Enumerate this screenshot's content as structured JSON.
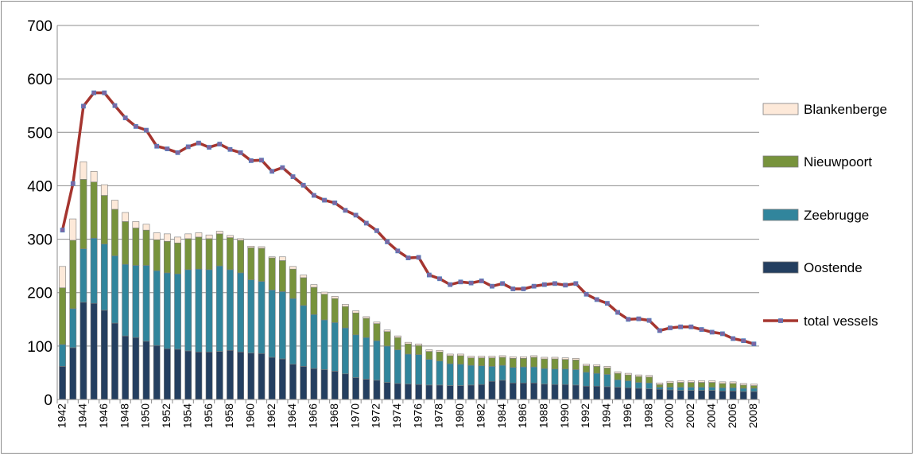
{
  "chart_data": {
    "type": "bar",
    "stacked": true,
    "title": "",
    "xlabel": "",
    "ylabel": "",
    "ylim": [
      0,
      700
    ],
    "yticks": [
      0,
      100,
      200,
      300,
      400,
      500,
      600,
      700
    ],
    "grid": "horizontal",
    "legend_position": "right",
    "categories": [
      "1942",
      "1943",
      "1944",
      "1945",
      "1946",
      "1947",
      "1948",
      "1949",
      "1950",
      "1951",
      "1952",
      "1953",
      "1954",
      "1955",
      "1956",
      "1957",
      "1958",
      "1959",
      "1960",
      "1961",
      "1962",
      "1963",
      "1964",
      "1965",
      "1966",
      "1967",
      "1968",
      "1969",
      "1970",
      "1971",
      "1972",
      "1973",
      "1974",
      "1975",
      "1976",
      "1977",
      "1978",
      "1979",
      "1980",
      "1981",
      "1982",
      "1983",
      "1984",
      "1985",
      "1986",
      "1987",
      "1988",
      "1989",
      "1990",
      "1991",
      "1992",
      "1993",
      "1994",
      "1995",
      "1996",
      "1997",
      "1998",
      "1999",
      "2000",
      "2001",
      "2002",
      "2003",
      "2004",
      "2005",
      "2006",
      "2007",
      "2008"
    ],
    "tick_labels": [
      "1942",
      "1944",
      "1946",
      "1948",
      "1950",
      "1952",
      "1954",
      "1956",
      "1958",
      "1960",
      "1962",
      "1964",
      "1966",
      "1968",
      "1970",
      "1972",
      "1974",
      "1976",
      "1978",
      "1980",
      "1982",
      "1984",
      "1986",
      "1988",
      "1990",
      "1992",
      "1994",
      "1996",
      "1998",
      "2000",
      "2002",
      "2004",
      "2006",
      "2008"
    ],
    "series": [
      {
        "name": "Oostende",
        "kind": "bar",
        "color": "#243f60",
        "values": [
          62,
          97,
          182,
          180,
          167,
          143,
          119,
          116,
          109,
          101,
          95,
          94,
          91,
          89,
          89,
          90,
          92,
          89,
          87,
          86,
          79,
          76,
          66,
          62,
          58,
          56,
          53,
          48,
          41,
          38,
          36,
          32,
          30,
          29,
          28,
          27,
          27,
          26,
          26,
          27,
          28,
          34,
          36,
          31,
          31,
          31,
          29,
          28,
          28,
          27,
          25,
          25,
          24,
          23,
          22,
          21,
          20,
          19,
          18,
          17,
          17,
          17,
          17,
          16,
          16,
          15,
          15
        ]
      },
      {
        "name": "Zeebrugge",
        "kind": "bar",
        "color": "#31859c",
        "values": [
          41,
          73,
          100,
          122,
          124,
          126,
          134,
          135,
          142,
          140,
          142,
          141,
          152,
          155,
          154,
          160,
          151,
          148,
          137,
          135,
          126,
          126,
          123,
          114,
          101,
          93,
          91,
          86,
          80,
          78,
          74,
          68,
          63,
          56,
          56,
          48,
          45,
          41,
          40,
          37,
          35,
          28,
          28,
          29,
          30,
          30,
          29,
          29,
          29,
          29,
          26,
          24,
          23,
          14,
          13,
          11,
          11,
          4,
          5,
          6,
          6,
          6,
          6,
          6,
          6,
          6,
          6
        ]
      },
      {
        "name": "Nieuwpoort",
        "kind": "bar",
        "color": "#77933c",
        "values": [
          106,
          128,
          130,
          105,
          91,
          87,
          80,
          70,
          66,
          58,
          59,
          58,
          58,
          60,
          58,
          60,
          60,
          61,
          60,
          62,
          60,
          58,
          55,
          52,
          51,
          48,
          45,
          40,
          41,
          36,
          32,
          27,
          23,
          19,
          17,
          15,
          17,
          15,
          16,
          14,
          15,
          16,
          15,
          17,
          16,
          18,
          18,
          19,
          18,
          18,
          12,
          13,
          12,
          12,
          11,
          11,
          11,
          5,
          8,
          9,
          9,
          9,
          9,
          8,
          8,
          6,
          5
        ]
      },
      {
        "name": "Blankenberge",
        "kind": "bar",
        "color": "#fde9d9",
        "values": [
          40,
          40,
          33,
          20,
          20,
          17,
          17,
          12,
          11,
          13,
          14,
          11,
          9,
          8,
          7,
          5,
          4,
          3,
          3,
          3,
          2,
          7,
          5,
          5,
          5,
          4,
          4,
          4,
          4,
          3,
          3,
          3,
          3,
          3,
          3,
          3,
          3,
          3,
          3,
          3,
          3,
          3,
          3,
          3,
          3,
          3,
          3,
          3,
          3,
          3,
          3,
          3,
          3,
          3,
          3,
          3,
          3,
          3,
          3,
          3,
          3,
          3,
          3,
          3,
          3,
          3,
          3
        ]
      },
      {
        "name": "total vessels",
        "kind": "line",
        "color": "#a5352f",
        "values": [
          317,
          404,
          549,
          574,
          574,
          550,
          527,
          511,
          504,
          474,
          469,
          462,
          473,
          480,
          472,
          478,
          468,
          462,
          447,
          448,
          427,
          434,
          417,
          401,
          382,
          373,
          368,
          354,
          345,
          330,
          316,
          295,
          278,
          265,
          266,
          233,
          226,
          215,
          220,
          218,
          222,
          212,
          217,
          207,
          207,
          212,
          215,
          217,
          214,
          217,
          197,
          187,
          180,
          163,
          150,
          151,
          148,
          129,
          134,
          136,
          136,
          131,
          126,
          123,
          114,
          110,
          104
        ]
      }
    ]
  }
}
